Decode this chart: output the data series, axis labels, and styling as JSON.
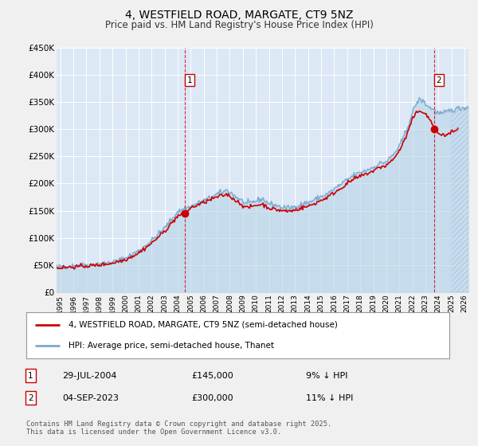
{
  "title": "4, WESTFIELD ROAD, MARGATE, CT9 5NZ",
  "subtitle": "Price paid vs. HM Land Registry's House Price Index (HPI)",
  "title_fontsize": 10,
  "subtitle_fontsize": 8.5,
  "bg_color": "#f0f0f0",
  "plot_bg_color": "#dce8f5",
  "grid_color": "#ffffff",
  "red_color": "#cc0000",
  "blue_color": "#7aaad0",
  "blue_fill_color": "#b8d4e8",
  "hatch_color": "#ccddee",
  "marker1_date_x": 2004.57,
  "marker1_y": 145000,
  "marker2_date_x": 2023.67,
  "marker2_y": 300000,
  "annotation1": {
    "label": "1",
    "date": "29-JUL-2004",
    "price": "£145,000",
    "pct": "9% ↓ HPI"
  },
  "annotation2": {
    "label": "2",
    "date": "04-SEP-2023",
    "price": "£300,000",
    "pct": "11% ↓ HPI"
  },
  "legend_line1": "4, WESTFIELD ROAD, MARGATE, CT9 5NZ (semi-detached house)",
  "legend_line2": "HPI: Average price, semi-detached house, Thanet",
  "footer": "Contains HM Land Registry data © Crown copyright and database right 2025.\nThis data is licensed under the Open Government Licence v3.0.",
  "ylim": [
    0,
    450000
  ],
  "xlim_start": 1994.7,
  "xlim_end": 2026.3,
  "yticks": [
    0,
    50000,
    100000,
    150000,
    200000,
    250000,
    300000,
    350000,
    400000,
    450000
  ],
  "ytick_labels": [
    "£0",
    "£50K",
    "£100K",
    "£150K",
    "£200K",
    "£250K",
    "£300K",
    "£350K",
    "£400K",
    "£450K"
  ],
  "xticks": [
    1995,
    1996,
    1997,
    1998,
    1999,
    2000,
    2001,
    2002,
    2003,
    2004,
    2005,
    2006,
    2007,
    2008,
    2009,
    2010,
    2011,
    2012,
    2013,
    2014,
    2015,
    2016,
    2017,
    2018,
    2019,
    2020,
    2021,
    2022,
    2023,
    2024,
    2025,
    2026
  ]
}
